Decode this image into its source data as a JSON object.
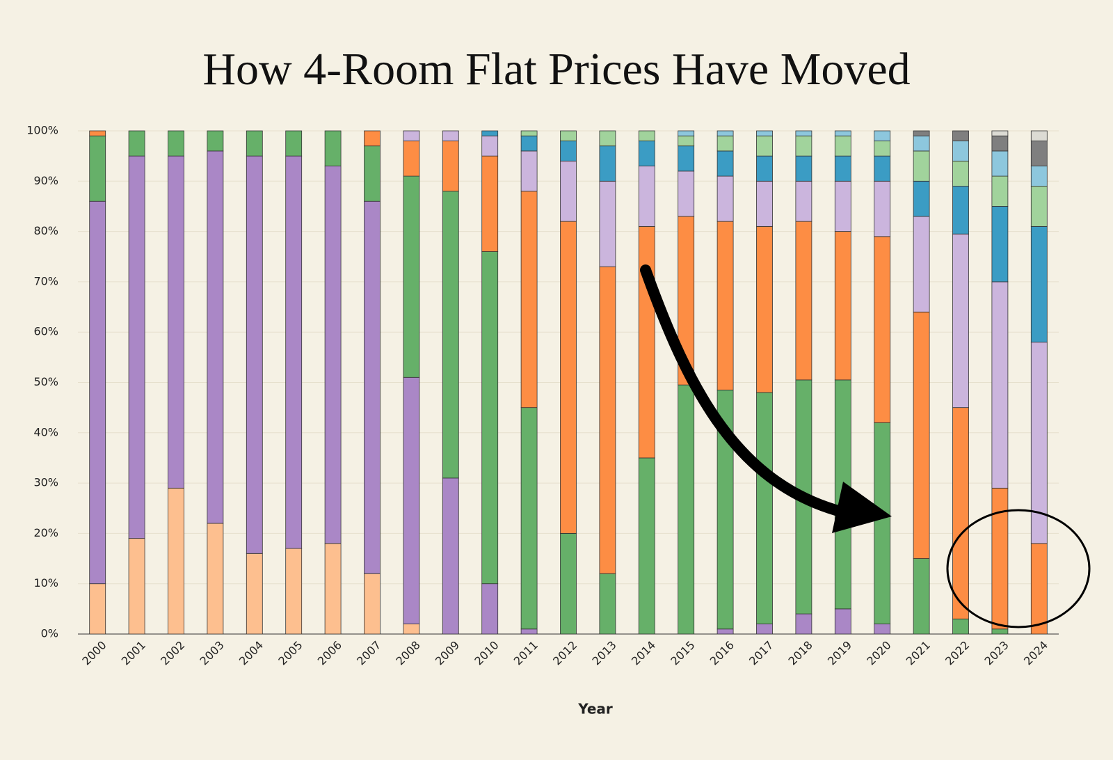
{
  "chart_data": {
    "type": "stacked_bar",
    "title": "How 4-Room Flat Prices Have Moved",
    "x_label": "Year",
    "categories": [
      "2000",
      "2001",
      "2002",
      "2003",
      "2004",
      "2005",
      "2006",
      "2007",
      "2008",
      "2009",
      "2010",
      "2011",
      "2012",
      "2013",
      "2014",
      "2015",
      "2016",
      "2017",
      "2018",
      "2019",
      "2020",
      "2021",
      "2022",
      "2023",
      "2024"
    ],
    "series": [
      {
        "color": "#fdbf8f",
        "values": [
          10,
          19,
          29,
          22,
          16,
          17,
          18,
          12,
          2,
          null,
          null,
          null,
          null,
          null,
          null,
          null,
          null,
          null,
          null,
          null,
          null,
          null,
          null,
          null,
          null
        ]
      },
      {
        "color": "#aa87c6",
        "values": [
          76,
          76,
          66,
          74,
          79,
          78,
          75,
          74,
          49,
          31,
          10,
          1,
          null,
          null,
          null,
          null,
          1,
          2,
          4,
          5,
          2,
          null,
          null,
          null,
          null
        ]
      },
      {
        "color": "#66b069",
        "values": [
          13,
          5,
          5,
          4,
          5,
          5,
          7,
          11,
          40,
          57,
          66,
          44,
          20,
          12,
          35,
          49.5,
          47.5,
          46,
          46.5,
          45.5,
          40,
          15,
          3,
          1,
          null
        ]
      },
      {
        "color": "#fd8d44",
        "values": [
          1,
          null,
          null,
          null,
          null,
          null,
          null,
          3,
          7,
          10,
          19,
          43,
          62,
          61,
          46,
          33.5,
          33.5,
          33,
          31.5,
          29.5,
          37,
          49,
          42,
          28,
          18
        ]
      },
      {
        "color": "#cbb5dd",
        "values": [
          null,
          null,
          null,
          null,
          null,
          null,
          null,
          null,
          2,
          2,
          4,
          8,
          12,
          17,
          12,
          9,
          9,
          9,
          8,
          10,
          11,
          19,
          34.5,
          41,
          40
        ]
      },
      {
        "color": "#3b9cc4",
        "values": [
          null,
          null,
          null,
          null,
          null,
          null,
          null,
          null,
          null,
          null,
          1,
          3,
          4,
          7,
          5,
          5,
          5,
          5,
          5,
          5,
          5,
          7,
          9.5,
          15,
          23
        ]
      },
      {
        "color": "#a1d39c",
        "values": [
          null,
          null,
          null,
          null,
          null,
          null,
          null,
          null,
          null,
          null,
          null,
          1,
          2,
          3,
          2,
          2,
          3,
          4,
          4,
          4,
          3,
          6,
          5,
          6,
          8
        ]
      },
      {
        "color": "#8dc7dd",
        "values": [
          null,
          null,
          null,
          null,
          null,
          null,
          null,
          null,
          null,
          null,
          null,
          null,
          null,
          null,
          null,
          1,
          1,
          1,
          1,
          1,
          2,
          3,
          4,
          5,
          4
        ]
      },
      {
        "color": "#7f7f7f",
        "values": [
          null,
          null,
          null,
          null,
          null,
          null,
          null,
          null,
          null,
          null,
          null,
          null,
          null,
          null,
          null,
          null,
          null,
          null,
          null,
          null,
          null,
          1,
          2,
          3,
          5
        ]
      },
      {
        "color": "#dcdbd4",
        "values": [
          null,
          null,
          null,
          null,
          null,
          null,
          null,
          null,
          null,
          null,
          null,
          null,
          null,
          null,
          null,
          null,
          null,
          null,
          null,
          null,
          null,
          null,
          null,
          1,
          2
        ]
      }
    ],
    "ylim": [
      0,
      100
    ],
    "yticks": [
      {
        "value": 0,
        "label": "0%"
      },
      {
        "value": 10,
        "label": "10%"
      },
      {
        "value": 20,
        "label": "20%"
      },
      {
        "value": 30,
        "label": "30%"
      },
      {
        "value": 40,
        "label": "40%"
      },
      {
        "value": 50,
        "label": "50%"
      },
      {
        "value": 60,
        "label": "60%"
      },
      {
        "value": 70,
        "label": "70%"
      },
      {
        "value": 80,
        "label": "80%"
      },
      {
        "value": 90,
        "label": "90%"
      },
      {
        "value": 100,
        "label": "100%"
      }
    ],
    "grid": true
  }
}
